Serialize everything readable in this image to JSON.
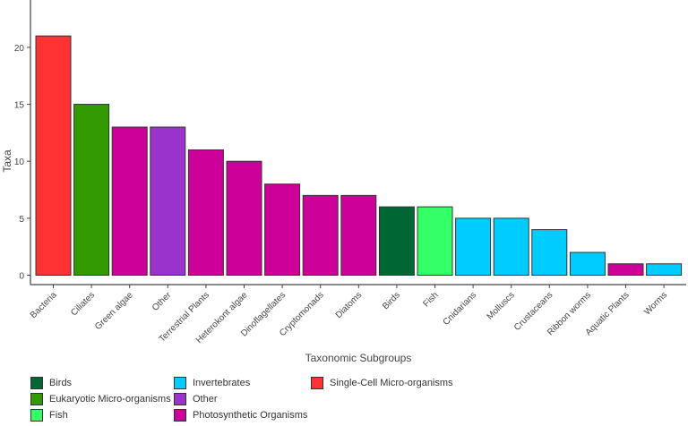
{
  "chart_data": {
    "type": "bar",
    "xlabel": "Taxonomic Subgroups",
    "ylabel": "Taxa",
    "ylim": [
      0,
      22
    ],
    "yticks": [
      0,
      5,
      10,
      15,
      20
    ],
    "grid": false,
    "legend_position": "bottom",
    "categories": [
      "Bacteria",
      "Ciliates",
      "Green algae",
      "Other",
      "Terrestrial Plants",
      "Heterokont algae",
      "Dinoflagellates",
      "Cryptomonads",
      "Diatoms",
      "Birds",
      "Fish",
      "Cnidarians",
      "Molluscs",
      "Crustaceans",
      "Ribbon worms",
      "Aquatic Plants",
      "Worms"
    ],
    "values": [
      21,
      15,
      13,
      13,
      11,
      10,
      8,
      7,
      7,
      6,
      6,
      5,
      5,
      4,
      2,
      1,
      1
    ],
    "groups": [
      "Single-Cell Micro-organisms",
      "Eukaryotic Micro-organisms",
      "Photosynthetic Organisms",
      "Other",
      "Photosynthetic Organisms",
      "Photosynthetic Organisms",
      "Photosynthetic Organisms",
      "Photosynthetic Organisms",
      "Photosynthetic Organisms",
      "Birds",
      "Fish",
      "Invertebrates",
      "Invertebrates",
      "Invertebrates",
      "Invertebrates",
      "Photosynthetic Organisms",
      "Invertebrates"
    ],
    "legend": [
      {
        "name": "Birds",
        "color": "#006633"
      },
      {
        "name": "Eukaryotic Micro-organisms",
        "color": "#339900"
      },
      {
        "name": "Fish",
        "color": "#33ff66"
      },
      {
        "name": "Invertebrates",
        "color": "#00ccff"
      },
      {
        "name": "Other",
        "color": "#9933cc"
      },
      {
        "name": "Photosynthetic Organisms",
        "color": "#cc0099"
      },
      {
        "name": "Single-Cell Micro-organisms",
        "color": "#ff3333"
      }
    ]
  }
}
